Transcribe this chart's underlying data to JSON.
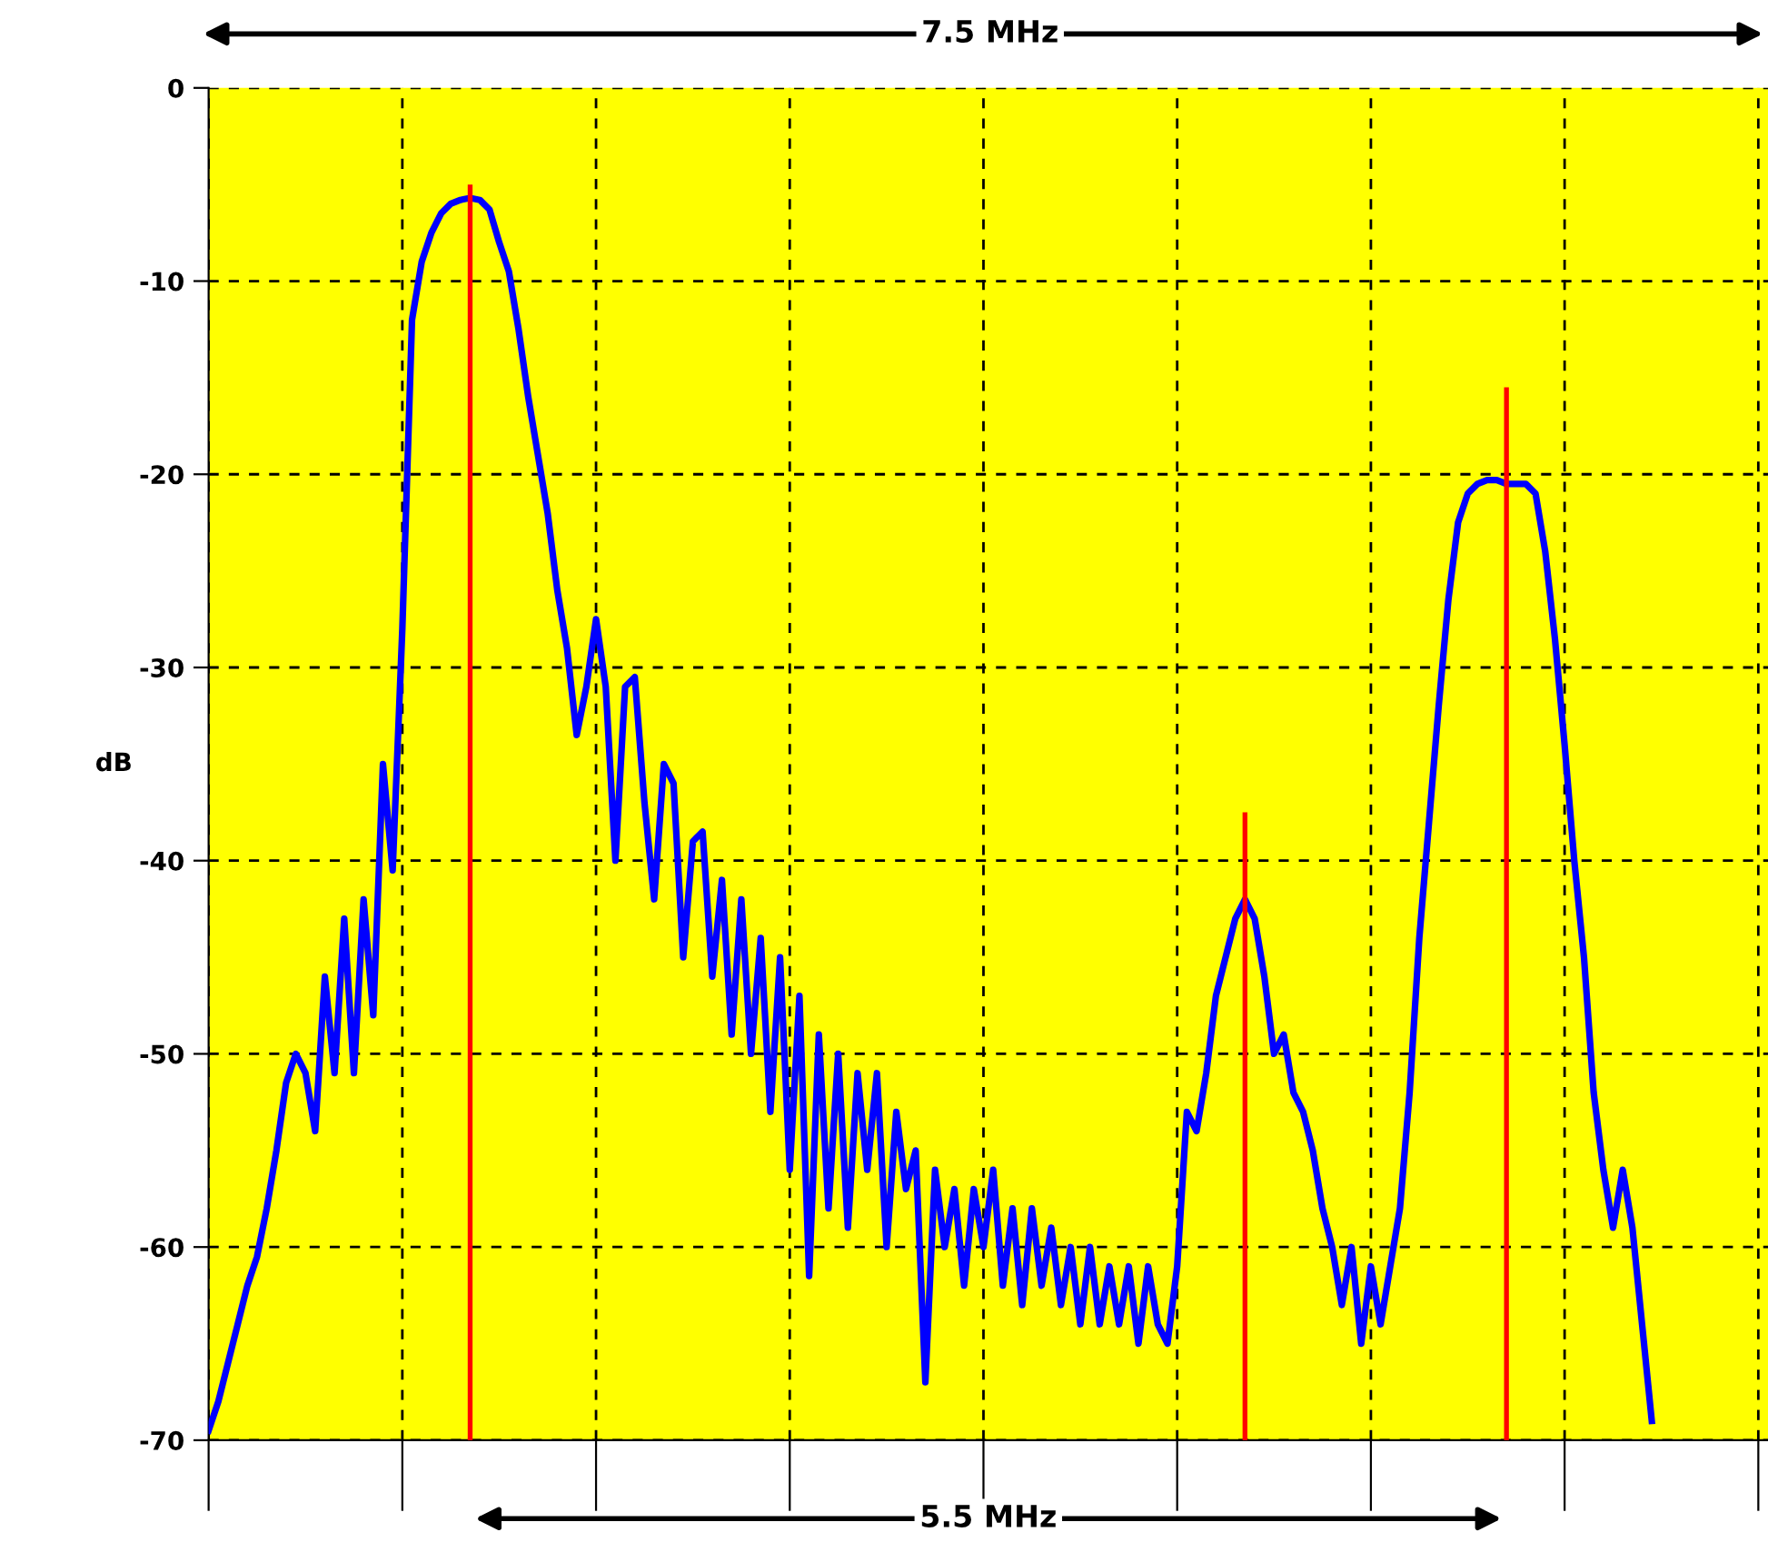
{
  "chart_data": {
    "type": "line",
    "ylabel": "dB",
    "ylim": [
      -70,
      0
    ],
    "yticks": [
      -70,
      -60,
      -50,
      -40,
      -30,
      -20,
      -10,
      0
    ],
    "grid": true,
    "line_style": "solid",
    "marker": "none",
    "legend": false,
    "annotations": [
      "7.5 MHz",
      "5.5 MHz"
    ],
    "categories": [
      null,
      null,
      null,
      null,
      null,
      null,
      null,
      null,
      null,
      null,
      null,
      null,
      null,
      null,
      null,
      null,
      null,
      null,
      null,
      null,
      null,
      null,
      null,
      null,
      null,
      null,
      null,
      null,
      null,
      null,
      null,
      null,
      null,
      null,
      null,
      null,
      null,
      null,
      null,
      null,
      null,
      null,
      null,
      null,
      null,
      null,
      null,
      null,
      null,
      null,
      null,
      null,
      null,
      null,
      null,
      null,
      null,
      null,
      null,
      null,
      null,
      null,
      null,
      null,
      null,
      null,
      null,
      null,
      null,
      null,
      null,
      null,
      null,
      null,
      null,
      null,
      null,
      null,
      null,
      null,
      null,
      null,
      null,
      null,
      null,
      null,
      null,
      null,
      null,
      null,
      null,
      null,
      null,
      null,
      null,
      null,
      null,
      null,
      null,
      null,
      null,
      null,
      null,
      null,
      null,
      null,
      null,
      null,
      null,
      null,
      null,
      null,
      null,
      null,
      null,
      null,
      null,
      null,
      null,
      null,
      null,
      null,
      null,
      null,
      null,
      null,
      null,
      null,
      null,
      null,
      null,
      null,
      null,
      null,
      null,
      null,
      null,
      null,
      null,
      null,
      null,
      null,
      null,
      null,
      null,
      null,
      null,
      null,
      null,
      null,
      null,
      null,
      null,
      null,
      null,
      null,
      null,
      null,
      null,
      null,
      null,
      null
    ],
    "series": [
      {
        "color": "#0000ff",
        "values": [
          -69.5,
          -68,
          -66,
          -64,
          -62,
          -60.5,
          -58,
          -55,
          -51.5,
          -50,
          -51,
          -54,
          -46,
          -51,
          -43,
          -51,
          -42,
          -48,
          -35,
          -40.5,
          -28,
          -12,
          -9,
          -7.5,
          -6.5,
          -6,
          -5.8,
          -5.7,
          -5.8,
          -6.3,
          -8,
          -9.5,
          -12.5,
          -16,
          -19,
          -22,
          -26,
          -29,
          -33.5,
          -31,
          -27.5,
          -31,
          -40,
          -31,
          -30.5,
          -37,
          -42,
          -35,
          -36,
          -45,
          -39,
          -38.5,
          -46,
          -41,
          -49,
          -42,
          -50,
          -44,
          -53,
          -45,
          -56,
          -47,
          -61.5,
          -49,
          -58,
          -50,
          -59,
          -51,
          -56,
          -51,
          -60,
          -53,
          -57,
          -55,
          -67,
          -56,
          -60,
          -57,
          -62,
          -57,
          -60,
          -56,
          -62,
          -58,
          -63,
          -58,
          -62,
          -59,
          -63,
          -60,
          -64,
          -60,
          -64,
          -61,
          -64,
          -61,
          -65,
          -61,
          -64,
          -65,
          -61,
          -53,
          -54,
          -51,
          -47,
          -45,
          -43,
          -42,
          -43,
          -46,
          -50,
          -49,
          -52,
          -53,
          -55,
          -58,
          -60,
          -63,
          -60,
          -65,
          -61,
          -64,
          -61,
          -58,
          -52,
          -44,
          -38,
          -32,
          -26.5,
          -22.5,
          -21,
          -20.5,
          -20.3,
          -20.3,
          -20.5,
          -20.5,
          -20.5,
          -21,
          -24,
          -28.5,
          -34,
          -40,
          -45,
          -52,
          -56,
          -59,
          -56,
          -59,
          -64,
          -69,
          null,
          null,
          null,
          null,
          null,
          null,
          null,
          null,
          null,
          null,
          null,
          null
        ]
      },
      {
        "type": "bar",
        "color": "#ff0000",
        "values": [
          null,
          null,
          null,
          null,
          null,
          null,
          null,
          null,
          null,
          null,
          null,
          null,
          null,
          null,
          null,
          null,
          null,
          null,
          null,
          null,
          null,
          null,
          null,
          null,
          null,
          null,
          null,
          65,
          null,
          null,
          null,
          null,
          null,
          null,
          null,
          null,
          null,
          null,
          null,
          null,
          null,
          null,
          null,
          null,
          null,
          null,
          null,
          null,
          null,
          null,
          null,
          null,
          null,
          null,
          null,
          null,
          null,
          null,
          null,
          null,
          null,
          null,
          null,
          null,
          null,
          null,
          null,
          null,
          null,
          null,
          null,
          null,
          null,
          null,
          null,
          null,
          null,
          null,
          null,
          null,
          null,
          null,
          null,
          null,
          null,
          null,
          null,
          null,
          null,
          null,
          null,
          null,
          null,
          null,
          null,
          null,
          null,
          null,
          null,
          null,
          null,
          null,
          null,
          null,
          null,
          null,
          null,
          32.5,
          null,
          null,
          null,
          null,
          null,
          null,
          null,
          null,
          null,
          null,
          null,
          null,
          null,
          null,
          null,
          null,
          null,
          null,
          null,
          null,
          null,
          null,
          null,
          null,
          null,
          null,
          54.5,
          null,
          null,
          null,
          null,
          null,
          null,
          null,
          null,
          null,
          null,
          null,
          null,
          null,
          null,
          null,
          null,
          null,
          null,
          null,
          null,
          null,
          null,
          null,
          null,
          null,
          null,
          null
        ],
        "base": [
          null,
          null,
          null,
          null,
          null,
          null,
          null,
          null,
          null,
          null,
          null,
          null,
          null,
          null,
          null,
          null,
          null,
          null,
          null,
          null,
          null,
          null,
          null,
          null,
          null,
          null,
          null,
          -70,
          null,
          null,
          null,
          null,
          null,
          null,
          null,
          null,
          null,
          null,
          null,
          null,
          null,
          null,
          null,
          null,
          null,
          null,
          null,
          null,
          null,
          null,
          null,
          null,
          null,
          null,
          null,
          null,
          null,
          null,
          null,
          null,
          null,
          null,
          null,
          null,
          null,
          null,
          null,
          null,
          null,
          null,
          null,
          null,
          null,
          null,
          null,
          null,
          null,
          null,
          null,
          null,
          null,
          null,
          null,
          null,
          null,
          null,
          null,
          null,
          null,
          null,
          null,
          null,
          null,
          null,
          null,
          null,
          null,
          null,
          null,
          null,
          null,
          null,
          null,
          null,
          null,
          null,
          null,
          -70,
          null,
          null,
          null,
          null,
          null,
          null,
          null,
          null,
          null,
          null,
          null,
          null,
          null,
          null,
          null,
          null,
          null,
          null,
          null,
          null,
          null,
          null,
          null,
          null,
          null,
          null,
          -70,
          null,
          null,
          null,
          null,
          null,
          null,
          null,
          null,
          null,
          null,
          null,
          null,
          null,
          null,
          null,
          null,
          null,
          null,
          null,
          null,
          null,
          null,
          null,
          null,
          null,
          null,
          null
        ]
      }
    ]
  }
}
